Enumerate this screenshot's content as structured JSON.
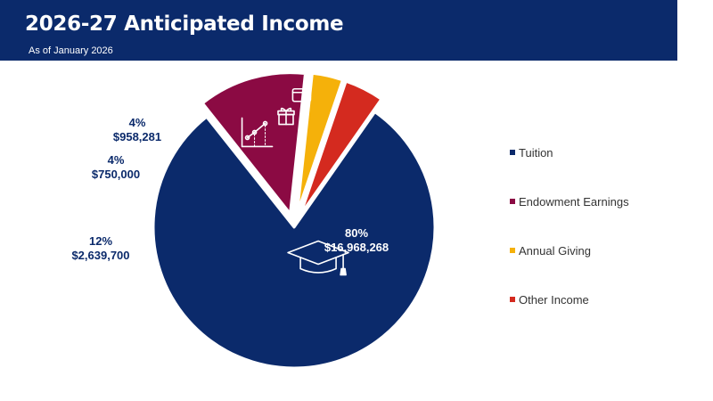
{
  "header": {
    "title": "2026-27 Anticipated Income",
    "subtitle": "As of January 2026"
  },
  "colors": {
    "header_bg": "#0b2a6b",
    "label_text": "#0b2a6b"
  },
  "chart_data": {
    "type": "pie",
    "title": "2026-27 Anticipated Income",
    "subtitle": "As of January 2026",
    "legend_position": "right",
    "slices": [
      {
        "name": "Tuition",
        "percent_label": "80%",
        "amount_label": "$16,968,268",
        "value": 16968268,
        "color": "#0b2a6b",
        "icon": "graduation-cap-icon",
        "exploded": false
      },
      {
        "name": "Endowment Earnings",
        "percent_label": "12%",
        "amount_label": "$2,639,700",
        "value": 2639700,
        "color": "#8b0a43",
        "icon": "line-chart-icon",
        "exploded": true
      },
      {
        "name": "Annual Giving",
        "percent_label": "4%",
        "amount_label": "$750,000",
        "value": 750000,
        "color": "#f5b10a",
        "icon": "gift-icon",
        "exploded": true
      },
      {
        "name": "Other Income",
        "percent_label": "4%",
        "amount_label": "$958,281",
        "value": 958281,
        "color": "#d42a1f",
        "icon": "wallet-icon",
        "exploded": true
      }
    ]
  }
}
